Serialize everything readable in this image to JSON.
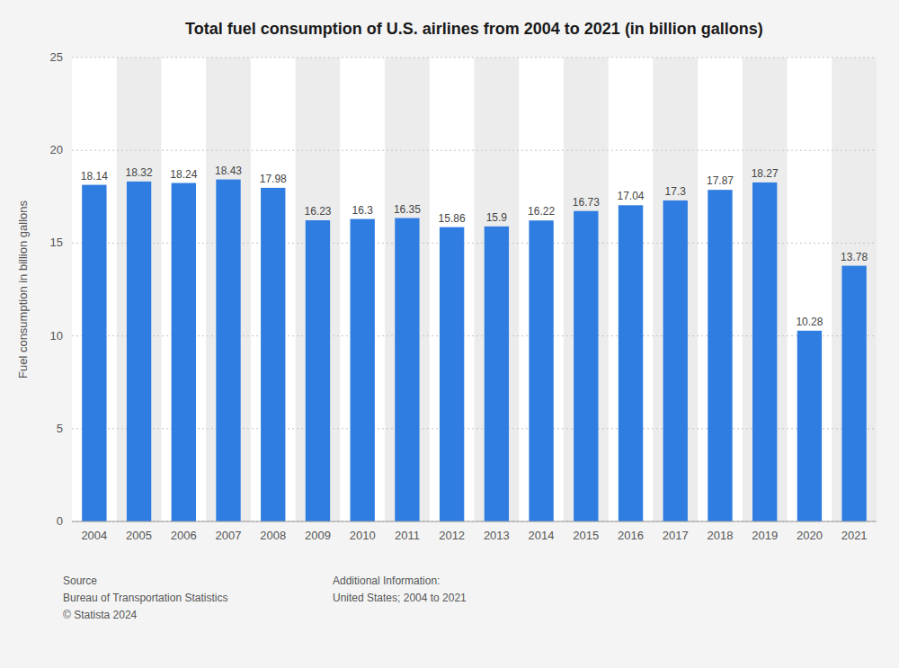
{
  "chart_data": {
    "type": "bar",
    "title": "Total fuel consumption of U.S. airlines from 2004 to 2021 (in billion gallons)",
    "categories": [
      "2004",
      "2005",
      "2006",
      "2007",
      "2008",
      "2009",
      "2010",
      "2011",
      "2012",
      "2013",
      "2014",
      "2015",
      "2016",
      "2017",
      "2018",
      "2019",
      "2020",
      "2021"
    ],
    "values": [
      18.14,
      18.32,
      18.24,
      18.43,
      17.98,
      16.23,
      16.3,
      16.35,
      15.86,
      15.9,
      16.22,
      16.73,
      17.04,
      17.3,
      17.87,
      18.27,
      10.28,
      13.78
    ],
    "color": "#2f7de1",
    "y_label": "Fuel consumption in billion gallons",
    "ylim": [
      0,
      25
    ],
    "yticks": [
      0,
      5,
      10,
      15,
      20,
      25
    ],
    "grid": true,
    "data_labels": true,
    "annotations": [
      "Source\nBureau of Transportation Statistics\n© Statista 2024",
      "Additional Information:\nUnited States; 2004 to 2021"
    ]
  }
}
